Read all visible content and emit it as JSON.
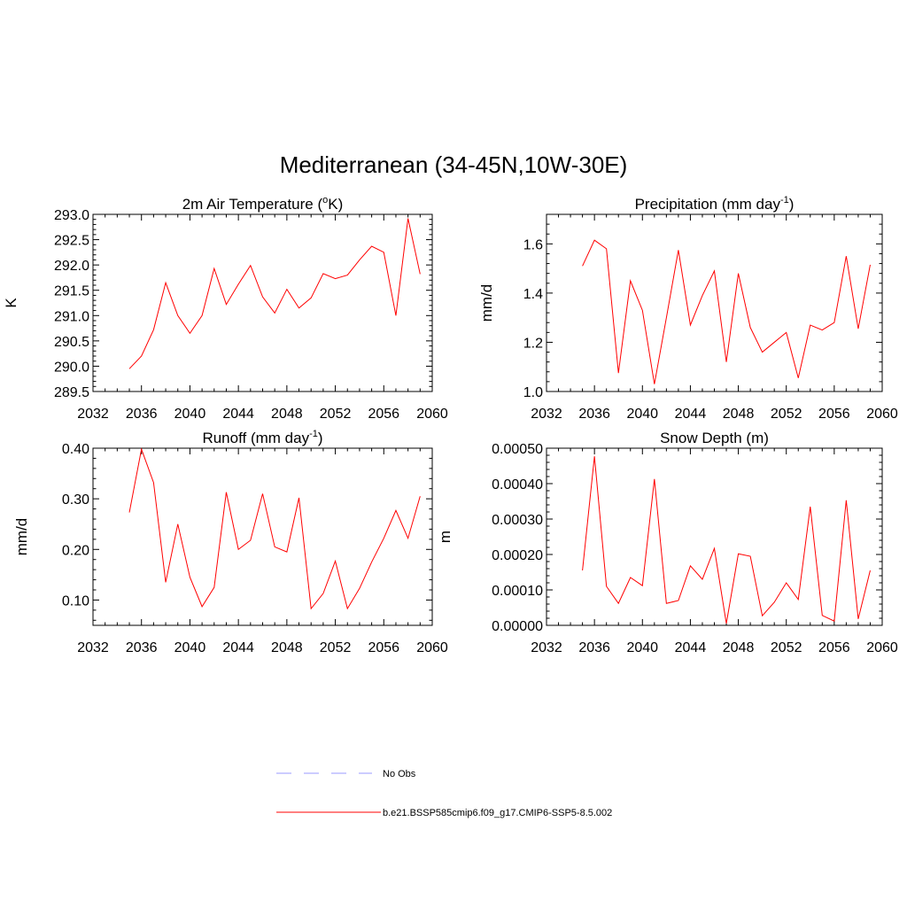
{
  "figure": {
    "title": "Mediterranean (34-45N,10W-30E)"
  },
  "legend": {
    "placement": "bottom-center",
    "entries": [
      {
        "label": "No Obs",
        "color": "#9999ff",
        "style": "dashed"
      },
      {
        "label": "b.e21.BSSP585cmip6.f09_g17.CMIP6-SSP5-8.5.002",
        "color": "#ff0000",
        "style": "solid"
      }
    ]
  },
  "chart_data": [
    {
      "type": "line",
      "title": "2m Air Temperature (oK)",
      "title_parts": {
        "pre": "2m Air Temperature (",
        "sup": "o",
        "post": "K)"
      },
      "ylabel": "K",
      "xlim": [
        2032,
        2060
      ],
      "ylim": [
        289.5,
        293.0
      ],
      "xticks": [
        2032,
        2036,
        2040,
        2044,
        2048,
        2052,
        2056,
        2060
      ],
      "xtick_labels": [
        "2032",
        "2036",
        "2040",
        "2044",
        "2048",
        "2052",
        "2056",
        "2060"
      ],
      "yticks": [
        289.5,
        290.0,
        290.5,
        291.0,
        291.5,
        292.0,
        292.5,
        293.0
      ],
      "ytick_labels": [
        "289.5",
        "290.0",
        "290.5",
        "291.0",
        "291.5",
        "292.0",
        "292.5",
        "293.0"
      ],
      "grid": false,
      "series": [
        {
          "color": "#ff0000",
          "x": [
            2035,
            2036,
            2037,
            2038,
            2039,
            2040,
            2041,
            2042,
            2043,
            2044,
            2045,
            2046,
            2047,
            2048,
            2049,
            2050,
            2051,
            2052,
            2053,
            2054,
            2055,
            2056,
            2057,
            2058,
            2059
          ],
          "y": [
            289.95,
            290.2,
            290.72,
            291.65,
            291.0,
            290.65,
            291.0,
            291.93,
            291.22,
            291.62,
            291.99,
            291.37,
            291.05,
            291.52,
            291.15,
            291.35,
            291.83,
            291.73,
            291.8,
            292.1,
            292.37,
            292.25,
            291.0,
            292.92,
            291.82
          ]
        }
      ]
    },
    {
      "type": "line",
      "title": "Precipitation (mm day-1)",
      "title_parts": {
        "pre": "Precipitation (mm day",
        "sup": "-1",
        "post": ")"
      },
      "ylabel": "mm/d",
      "xlim": [
        2032,
        2060
      ],
      "ylim": [
        1.0,
        1.72
      ],
      "xticks": [
        2032,
        2036,
        2040,
        2044,
        2048,
        2052,
        2056,
        2060
      ],
      "xtick_labels": [
        "2032",
        "2036",
        "2040",
        "2044",
        "2048",
        "2052",
        "2056",
        "2060"
      ],
      "yticks": [
        1.0,
        1.2,
        1.4,
        1.6
      ],
      "ytick_labels": [
        "1.0",
        "1.2",
        "1.4",
        "1.6"
      ],
      "grid": false,
      "series": [
        {
          "color": "#ff0000",
          "x": [
            2035,
            2036,
            2037,
            2038,
            2039,
            2040,
            2041,
            2042,
            2043,
            2044,
            2045,
            2046,
            2047,
            2048,
            2049,
            2050,
            2051,
            2052,
            2053,
            2054,
            2055,
            2056,
            2057,
            2058,
            2059
          ],
          "y": [
            1.51,
            1.615,
            1.58,
            1.075,
            1.45,
            1.33,
            1.03,
            1.3,
            1.575,
            1.27,
            1.39,
            1.49,
            1.12,
            1.48,
            1.26,
            1.16,
            1.2,
            1.24,
            1.055,
            1.27,
            1.25,
            1.28,
            1.55,
            1.255,
            1.515
          ]
        }
      ]
    },
    {
      "type": "line",
      "title": "Runoff (mm day-1)",
      "title_parts": {
        "pre": "Runoff (mm day",
        "sup": "-1",
        "post": ")"
      },
      "ylabel": "mm/d",
      "xlim": [
        2032,
        2060
      ],
      "ylim": [
        0.05,
        0.4
      ],
      "xticks": [
        2032,
        2036,
        2040,
        2044,
        2048,
        2052,
        2056,
        2060
      ],
      "xtick_labels": [
        "2032",
        "2036",
        "2040",
        "2044",
        "2048",
        "2052",
        "2056",
        "2060"
      ],
      "yticks": [
        0.1,
        0.2,
        0.3,
        0.4
      ],
      "ytick_labels": [
        "0.10",
        "0.20",
        "0.30",
        "0.40"
      ],
      "grid": false,
      "series": [
        {
          "color": "#ff0000",
          "x": [
            2035,
            2036,
            2037,
            2038,
            2039,
            2040,
            2041,
            2042,
            2043,
            2044,
            2045,
            2046,
            2047,
            2048,
            2049,
            2050,
            2051,
            2052,
            2053,
            2054,
            2055,
            2056,
            2057,
            2058,
            2059
          ],
          "y": [
            0.273,
            0.398,
            0.332,
            0.135,
            0.25,
            0.145,
            0.087,
            0.125,
            0.313,
            0.2,
            0.218,
            0.31,
            0.205,
            0.195,
            0.302,
            0.083,
            0.113,
            0.177,
            0.083,
            0.123,
            0.175,
            0.222,
            0.277,
            0.222,
            0.305
          ]
        }
      ]
    },
    {
      "type": "line",
      "title": "Snow Depth (m)",
      "title_parts": {
        "pre": "Snow Depth (m)",
        "sup": "",
        "post": ""
      },
      "ylabel": "m",
      "xlim": [
        2032,
        2060
      ],
      "ylim": [
        0.0,
        0.0005
      ],
      "xticks": [
        2032,
        2036,
        2040,
        2044,
        2048,
        2052,
        2056,
        2060
      ],
      "xtick_labels": [
        "2032",
        "2036",
        "2040",
        "2044",
        "2048",
        "2052",
        "2056",
        "2060"
      ],
      "yticks": [
        0.0,
        0.0001,
        0.0002,
        0.0003,
        0.0004,
        0.0005
      ],
      "ytick_labels": [
        "0.00000",
        "0.00010",
        "0.00020",
        "0.00030",
        "0.00040",
        "0.00050"
      ],
      "grid": false,
      "series": [
        {
          "color": "#ff0000",
          "x": [
            2035,
            2036,
            2037,
            2038,
            2039,
            2040,
            2041,
            2042,
            2043,
            2044,
            2045,
            2046,
            2047,
            2048,
            2049,
            2050,
            2051,
            2052,
            2053,
            2054,
            2055,
            2056,
            2057,
            2058,
            2059
          ],
          "y": [
            0.000155,
            0.000477,
            0.00011,
            6.2e-05,
            0.000135,
            0.000112,
            0.000413,
            6.2e-05,
            7e-05,
            0.000168,
            0.00013,
            0.000217,
            5e-06,
            0.000202,
            0.000195,
            2.7e-05,
            6.5e-05,
            0.00012,
            7.3e-05,
            0.000335,
            2.8e-05,
            1.2e-05,
            0.000353,
            1.8e-05,
            0.000155
          ]
        }
      ]
    }
  ]
}
